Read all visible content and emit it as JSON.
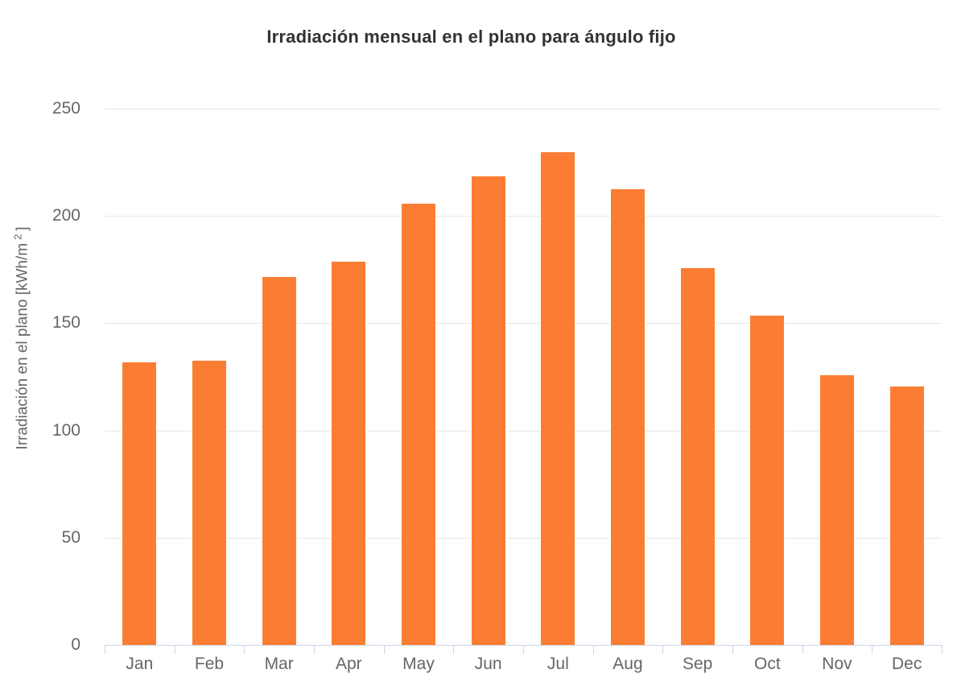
{
  "chart_data": {
    "type": "bar",
    "title": "Irradiación mensual en el plano para ángulo fijo",
    "categories": [
      "Jan",
      "Feb",
      "Mar",
      "Apr",
      "May",
      "Jun",
      "Jul",
      "Aug",
      "Sep",
      "Oct",
      "Nov",
      "Dec"
    ],
    "values": [
      132,
      133,
      172,
      179,
      206,
      219,
      230,
      213,
      176,
      154,
      126,
      121
    ],
    "xlabel": "",
    "ylabel": "Irradiación en el plano [kWh/m²]",
    "ylabel_parts": {
      "prefix": "Irradiación en el plano [kWh/m",
      "sup": "2",
      "suffix": "]"
    },
    "yticks": [
      0,
      50,
      100,
      150,
      200,
      250
    ],
    "ylim": [
      0,
      250
    ],
    "grid": true,
    "legend": false,
    "bar_color": "#fb7d33"
  },
  "colors": {
    "bar": "#fb7d33",
    "bar_border": "#ffffff",
    "gridline": "#e6e6e6",
    "axis_line": "#ccd6eb",
    "tick_label": "#666666",
    "title": "#333333",
    "background": "#ffffff"
  }
}
